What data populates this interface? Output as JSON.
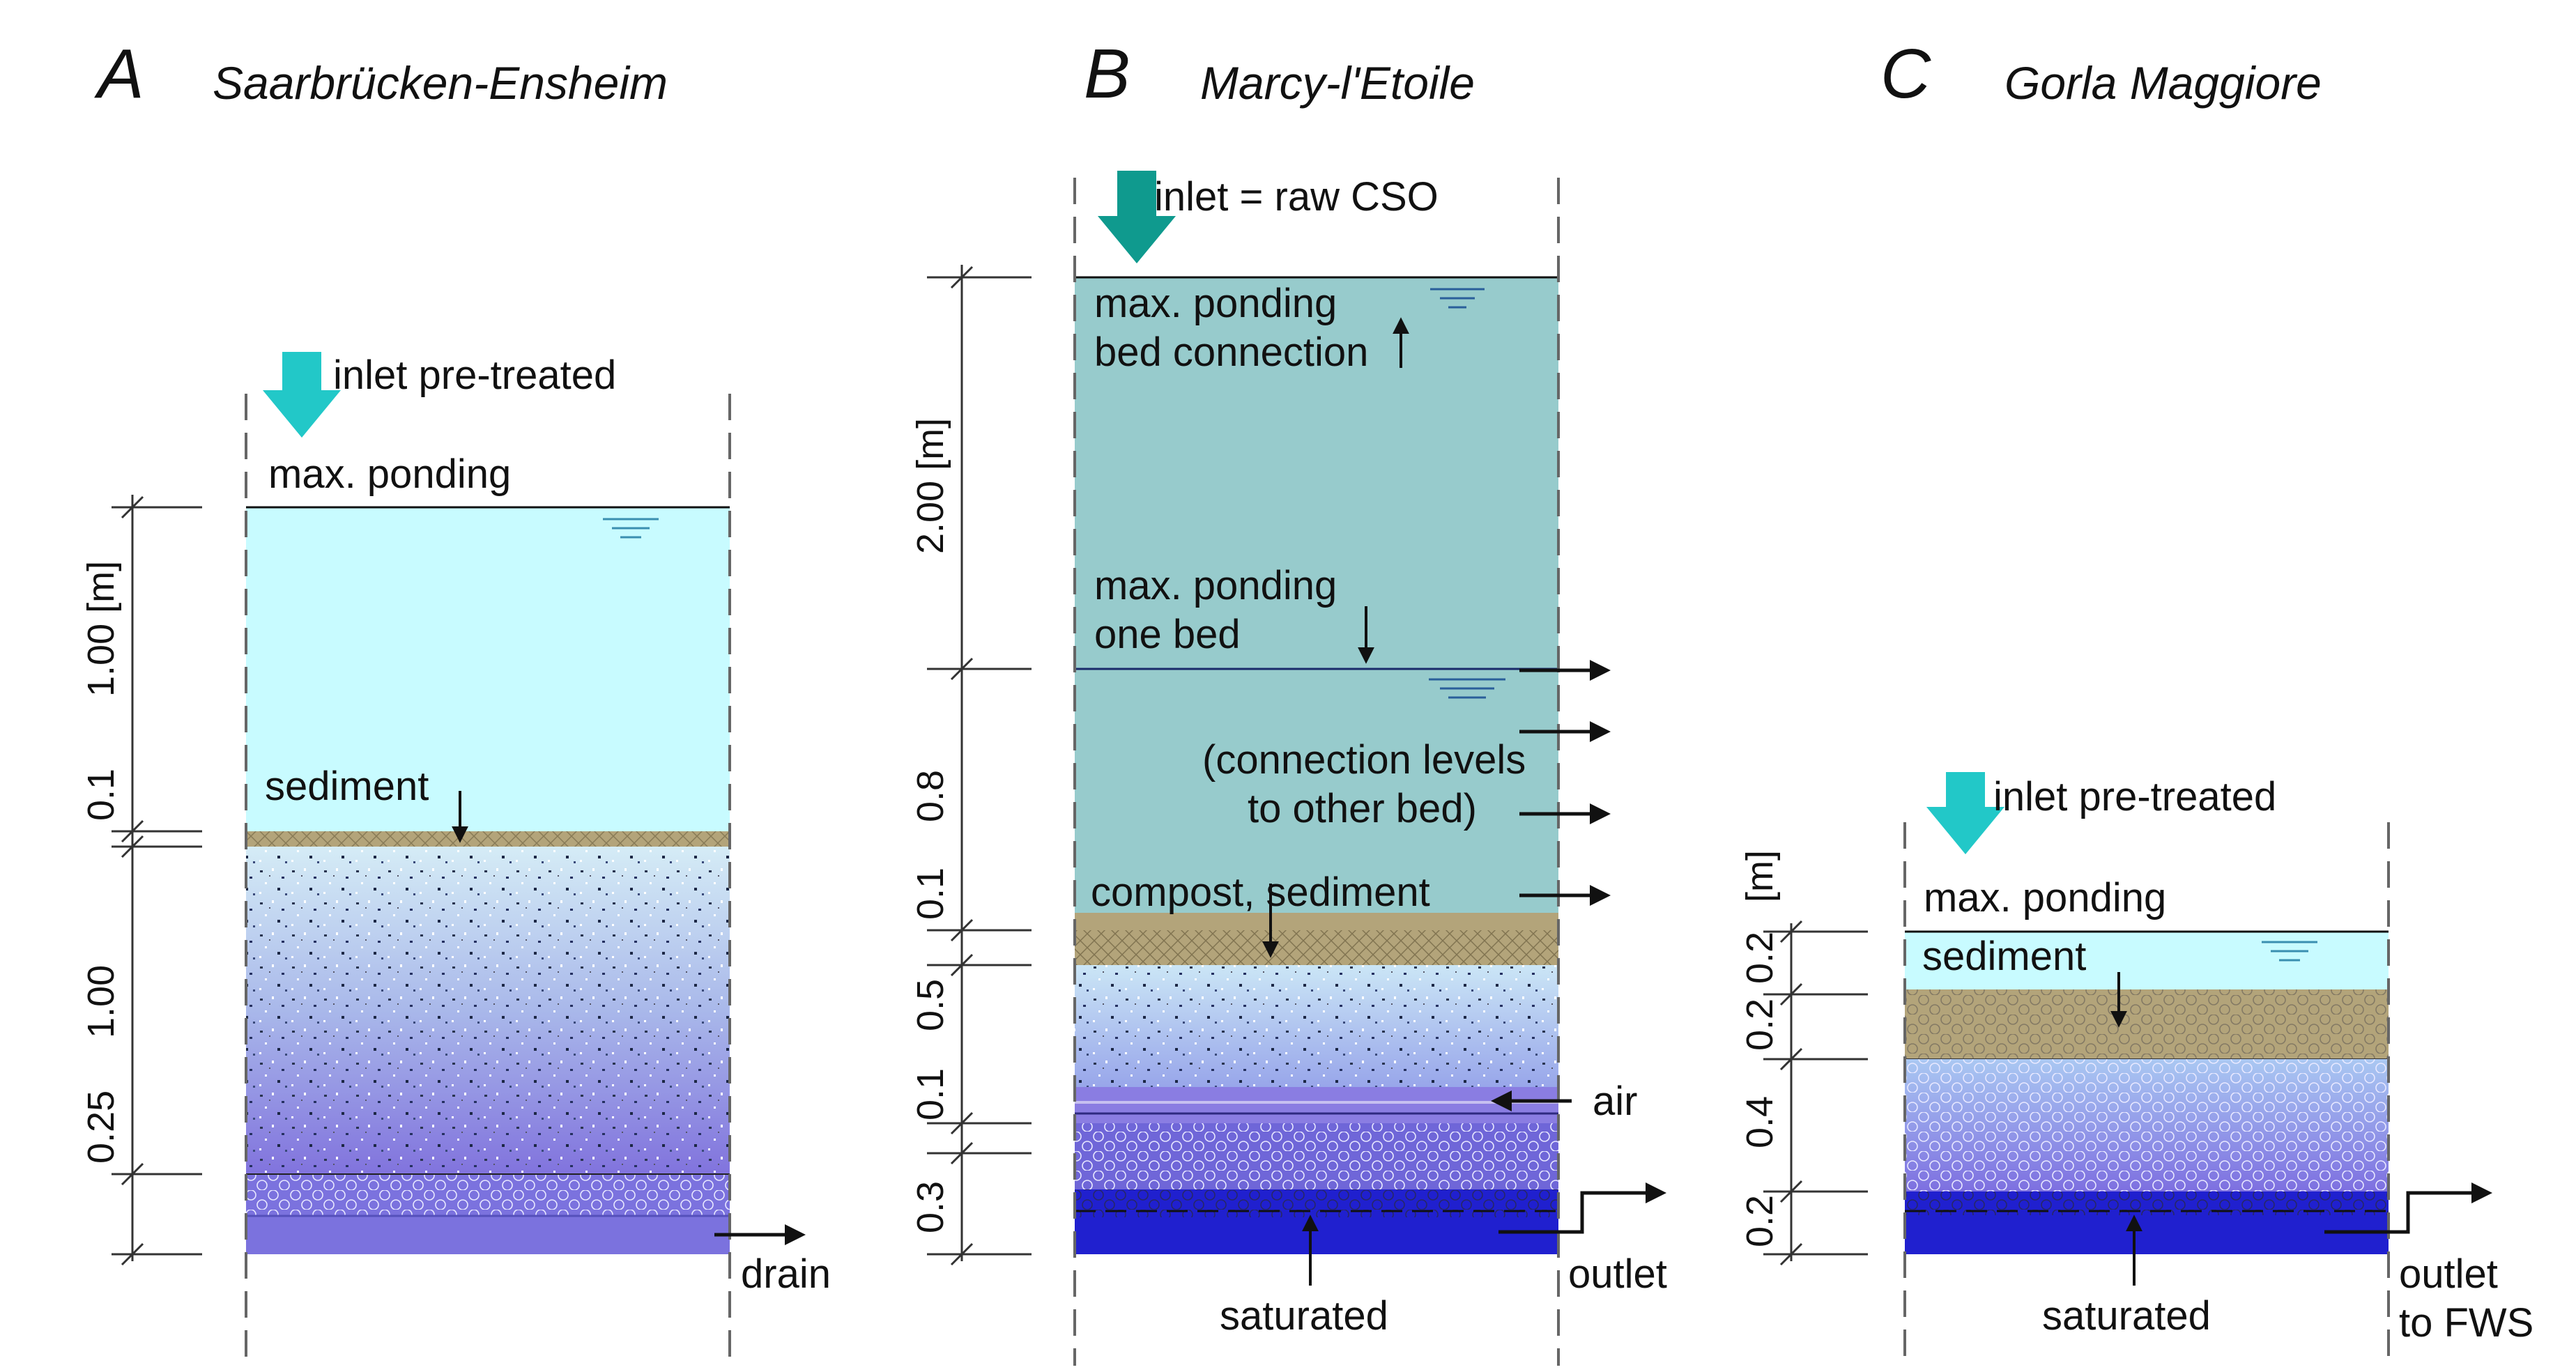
{
  "colors": {
    "water_light": "#c8fbff",
    "water_teal": "#97cbcc",
    "sediment": "#b3a47a",
    "gravel_light": "#c5e2f4",
    "gravel_mid": "#9faee9",
    "gravel_purple": "#8a7de2",
    "hex_layer": "#7b72de",
    "saturated": "#2020cf",
    "arrow_cyan": "#22c8c8",
    "arrow_teal": "#0f9a8e"
  },
  "panels": [
    {
      "letter": "A",
      "site": "Saarbrücken-Ensheim",
      "labels": {
        "inlet": "inlet pre-treated",
        "ponding": "max. ponding",
        "sediment": "sediment",
        "drain": "drain"
      },
      "dims": {
        "water": "1.00 [m]",
        "sed": "0.1",
        "filter": "1.00",
        "drainage": "0.25"
      }
    },
    {
      "letter": "B",
      "site": "Marcy-l'Etoile",
      "labels": {
        "inlet": "inlet = raw CSO",
        "ponding_conn_1": "max. ponding",
        "ponding_conn_2": "bed connection",
        "ponding_one_1": "max. ponding",
        "ponding_one_2": "one bed",
        "conn_1": "(connection levels",
        "conn_2": "to other bed)",
        "compost": "compost, sediment",
        "air": "air",
        "outlet": "outlet",
        "saturated": "saturated"
      },
      "dims": {
        "upper": "2.00 [m]",
        "lower": "0.8",
        "sed": "0.1",
        "filter": "0.5",
        "air": "0.1",
        "sat": "0.3"
      }
    },
    {
      "letter": "C",
      "site": "Gorla Maggiore",
      "labels": {
        "inlet": "inlet pre-treated",
        "ponding": "max. ponding",
        "sediment": "sediment",
        "outlet_1": "outlet",
        "outlet_2": "to FWS",
        "saturated": "saturated"
      },
      "dims": {
        "unit": "[m]",
        "water": "0.2",
        "sed": "0.2",
        "filter": "0.4",
        "sat": "0.2"
      }
    }
  ]
}
